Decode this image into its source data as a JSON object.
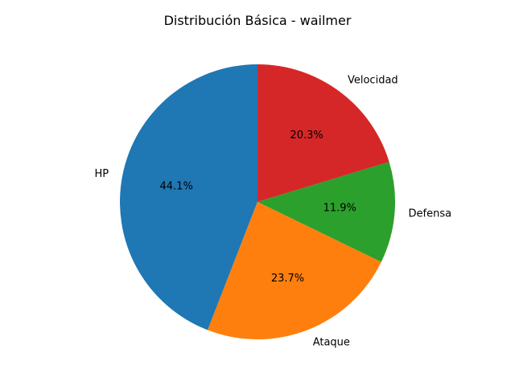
{
  "chart_data": {
    "type": "pie",
    "title": "Distribución Básica - wailmer",
    "categories": [
      "HP",
      "Ataque",
      "Defensa",
      "Velocidad"
    ],
    "values": [
      44.1,
      23.7,
      11.9,
      20.3
    ],
    "percent_labels": [
      "44.1%",
      "23.7%",
      "11.9%",
      "20.3%"
    ],
    "colors": [
      "#1f77b4",
      "#ff7f0e",
      "#2ca02c",
      "#d62728"
    ],
    "start_angle_deg": 90,
    "direction": "counterclockwise",
    "legend": "none"
  }
}
